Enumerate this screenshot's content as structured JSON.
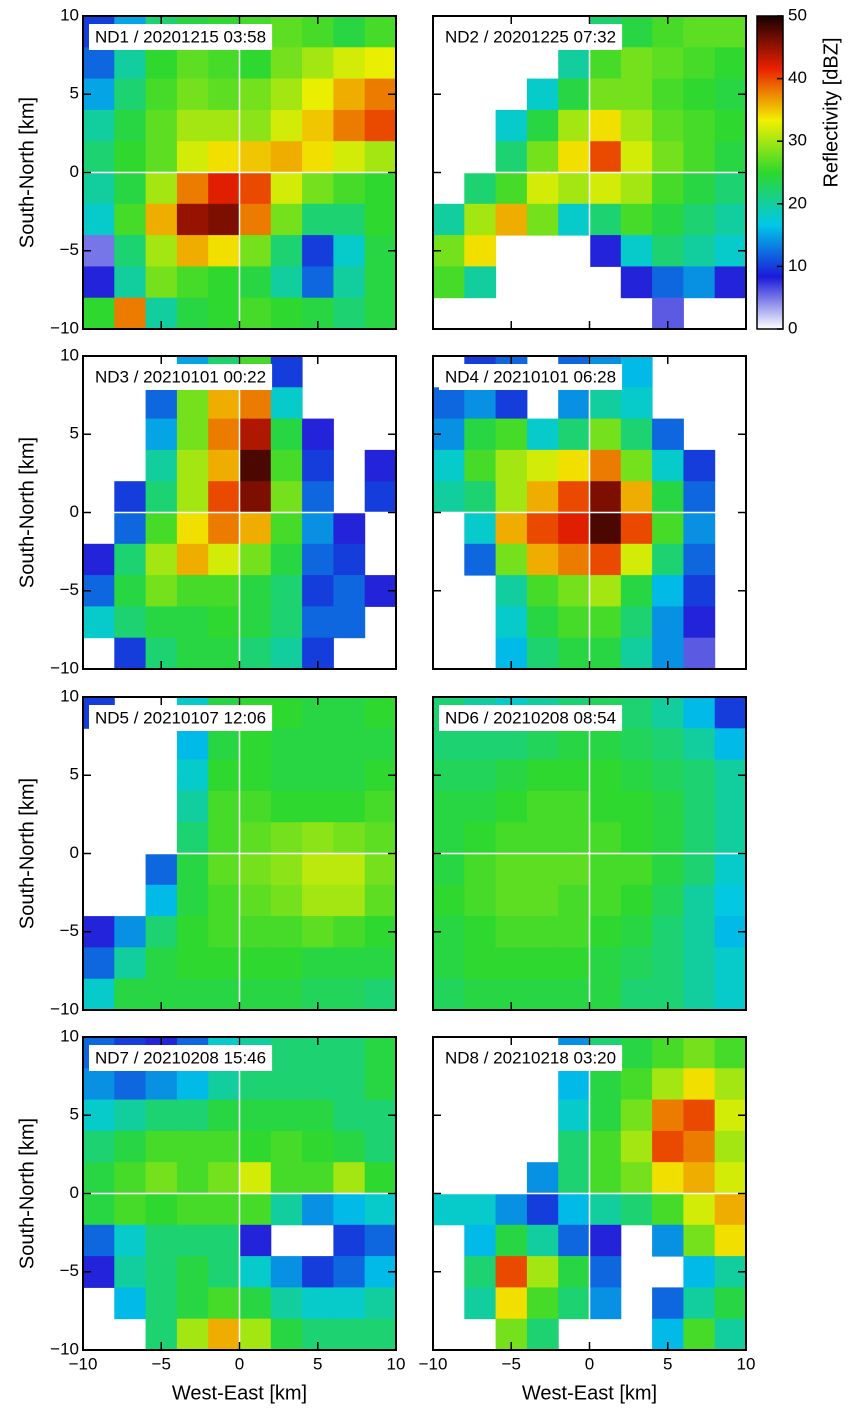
{
  "chart_data": [
    {
      "type": "heatmap",
      "title": "ND1 / 20201215 03:58",
      "ylabel": "South-North [km]",
      "xlim": [
        -10,
        10
      ],
      "ylim": [
        -10,
        10
      ],
      "xticks": [
        -10,
        -5,
        0,
        5,
        10
      ],
      "yticks": [
        {
          "value": -10,
          "label": "−10"
        },
        {
          "value": -5,
          "label": "−5"
        },
        0,
        5,
        10
      ],
      "values": [
        [
          10,
          15,
          22,
          24,
          25,
          26,
          27,
          26,
          24,
          26
        ],
        [
          12,
          20,
          25,
          27,
          26,
          25,
          28,
          30,
          32,
          33
        ],
        [
          15,
          22,
          26,
          28,
          27,
          28,
          30,
          33,
          36,
          38
        ],
        [
          20,
          24,
          27,
          30,
          30,
          29,
          32,
          35,
          38,
          40
        ],
        [
          22,
          25,
          27,
          32,
          34,
          35,
          36,
          34,
          32,
          30
        ],
        [
          20,
          24,
          30,
          38,
          42,
          40,
          32,
          28,
          26,
          25
        ],
        [
          18,
          26,
          36,
          45,
          46,
          38,
          28,
          22,
          22,
          25
        ],
        [
          5,
          22,
          30,
          36,
          34,
          28,
          22,
          10,
          18,
          24
        ],
        [
          8,
          20,
          28,
          26,
          25,
          24,
          20,
          12,
          20,
          24
        ],
        [
          25,
          38,
          20,
          24,
          25,
          26,
          25,
          24,
          22,
          24
        ]
      ]
    },
    {
      "type": "heatmap",
      "title": "ND2 / 20201225 07:32",
      "xlim": [
        -10,
        10
      ],
      "ylim": [
        -10,
        10
      ],
      "xticks": [
        -10,
        -5,
        0,
        5,
        10
      ],
      "yticks": [
        -10,
        -5,
        0,
        5,
        10
      ],
      "values": [
        [
          null,
          null,
          null,
          null,
          null,
          22,
          24,
          26,
          27,
          27
        ],
        [
          null,
          null,
          null,
          null,
          20,
          26,
          28,
          27,
          26,
          25
        ],
        [
          null,
          null,
          null,
          18,
          24,
          28,
          28,
          26,
          25,
          24
        ],
        [
          null,
          null,
          18,
          24,
          30,
          34,
          30,
          27,
          26,
          25
        ],
        [
          null,
          null,
          22,
          28,
          34,
          40,
          32,
          28,
          26,
          24
        ],
        [
          null,
          22,
          26,
          32,
          30,
          32,
          30,
          26,
          24,
          22
        ],
        [
          20,
          30,
          36,
          28,
          18,
          22,
          26,
          24,
          22,
          20
        ],
        [
          28,
          34,
          null,
          null,
          null,
          8,
          18,
          22,
          20,
          18
        ],
        [
          26,
          20,
          null,
          null,
          null,
          null,
          8,
          12,
          14,
          8
        ],
        [
          null,
          null,
          null,
          null,
          null,
          null,
          null,
          6,
          null,
          null
        ]
      ],
      "colorbar_label": "Reflectivity [dBZ]",
      "zlim": [
        0,
        50
      ],
      "zticks": [
        0,
        10,
        20,
        30,
        40,
        50
      ],
      "colormap": [
        "#ffffff",
        "#1a1ad8",
        "#00c8e8",
        "#2ed82e",
        "#f2f000",
        "#e82000",
        "#1a0000"
      ]
    },
    {
      "type": "heatmap",
      "title": "ND3 / 20210101 00:22",
      "ylabel": "South-North [km]",
      "xlim": [
        -10,
        10
      ],
      "ylim": [
        -10,
        10
      ],
      "xticks": [
        -10,
        -5,
        0,
        5,
        10
      ],
      "yticks": [
        {
          "value": -10,
          "label": "−10"
        },
        {
          "value": -5,
          "label": "−5"
        },
        0,
        5,
        10
      ],
      "values": [
        [
          null,
          null,
          null,
          15,
          22,
          26,
          10,
          null,
          null,
          null
        ],
        [
          null,
          null,
          12,
          28,
          36,
          38,
          18,
          null,
          null,
          null
        ],
        [
          null,
          null,
          15,
          28,
          38,
          44,
          24,
          8,
          null,
          null
        ],
        [
          null,
          null,
          20,
          30,
          36,
          48,
          26,
          10,
          null,
          8
        ],
        [
          null,
          10,
          22,
          30,
          40,
          46,
          28,
          12,
          null,
          10
        ],
        [
          null,
          12,
          26,
          34,
          38,
          36,
          26,
          14,
          8,
          null
        ],
        [
          8,
          22,
          30,
          36,
          32,
          28,
          24,
          12,
          10,
          null
        ],
        [
          12,
          24,
          28,
          26,
          26,
          24,
          22,
          10,
          12,
          8
        ],
        [
          18,
          22,
          24,
          24,
          25,
          24,
          22,
          12,
          12,
          null
        ],
        [
          null,
          10,
          22,
          24,
          24,
          22,
          20,
          10,
          null,
          null
        ]
      ]
    },
    {
      "type": "heatmap",
      "title": "ND4 / 20210101 06:28",
      "xlim": [
        -10,
        10
      ],
      "ylim": [
        -10,
        10
      ],
      "xticks": [
        -10,
        -5,
        0,
        5,
        10
      ],
      "yticks": [
        -10,
        -5,
        0,
        5,
        10
      ],
      "values": [
        [
          null,
          10,
          12,
          null,
          12,
          14,
          16,
          null,
          null,
          null
        ],
        [
          12,
          14,
          10,
          null,
          14,
          20,
          18,
          null,
          null,
          null
        ],
        [
          14,
          24,
          26,
          18,
          22,
          28,
          22,
          12,
          null,
          null
        ],
        [
          18,
          26,
          30,
          32,
          34,
          38,
          28,
          18,
          10,
          null
        ],
        [
          20,
          22,
          30,
          36,
          40,
          46,
          36,
          24,
          12,
          null
        ],
        [
          null,
          18,
          36,
          40,
          42,
          48,
          40,
          26,
          14,
          null
        ],
        [
          null,
          12,
          28,
          36,
          38,
          40,
          32,
          22,
          12,
          null
        ],
        [
          null,
          null,
          20,
          26,
          28,
          30,
          24,
          16,
          10,
          null
        ],
        [
          null,
          null,
          18,
          24,
          26,
          26,
          22,
          14,
          8,
          null
        ],
        [
          null,
          null,
          16,
          22,
          24,
          24,
          20,
          14,
          6,
          null
        ]
      ]
    },
    {
      "type": "heatmap",
      "title": "ND5 / 20210107 12:06",
      "ylabel": "South-North [km]",
      "xlim": [
        -10,
        10
      ],
      "ylim": [
        -10,
        10
      ],
      "xticks": [
        -10,
        -5,
        0,
        5,
        10
      ],
      "yticks": [
        {
          "value": -10,
          "label": "−10"
        },
        {
          "value": -5,
          "label": "−5"
        },
        0,
        5,
        10
      ],
      "values": [
        [
          10,
          null,
          null,
          18,
          24,
          25,
          25,
          24,
          24,
          25
        ],
        [
          null,
          null,
          null,
          16,
          24,
          25,
          24,
          24,
          24,
          24
        ],
        [
          null,
          null,
          null,
          18,
          25,
          25,
          24,
          24,
          24,
          25
        ],
        [
          null,
          null,
          null,
          20,
          26,
          26,
          25,
          25,
          25,
          26
        ],
        [
          null,
          null,
          null,
          22,
          26,
          27,
          28,
          29,
          28,
          27
        ],
        [
          null,
          null,
          12,
          24,
          27,
          28,
          29,
          31,
          31,
          28
        ],
        [
          null,
          null,
          16,
          24,
          26,
          27,
          28,
          30,
          30,
          27
        ],
        [
          8,
          14,
          22,
          25,
          26,
          26,
          26,
          27,
          26,
          25
        ],
        [
          12,
          20,
          24,
          25,
          25,
          25,
          25,
          24,
          24,
          24
        ],
        [
          18,
          24,
          24,
          24,
          24,
          24,
          24,
          23,
          23,
          22
        ]
      ]
    },
    {
      "type": "heatmap",
      "title": "ND6 / 20210208 08:54",
      "xlim": [
        -10,
        10
      ],
      "ylim": [
        -10,
        10
      ],
      "xticks": [
        -10,
        -5,
        0,
        5,
        10
      ],
      "yticks": [
        -10,
        -5,
        0,
        5,
        10
      ],
      "values": [
        [
          22,
          20,
          18,
          20,
          22,
          23,
          22,
          20,
          16,
          10
        ],
        [
          22,
          22,
          22,
          23,
          24,
          24,
          23,
          22,
          20,
          16
        ],
        [
          23,
          23,
          24,
          25,
          25,
          25,
          24,
          23,
          22,
          20
        ],
        [
          24,
          24,
          25,
          26,
          26,
          25,
          25,
          24,
          22,
          20
        ],
        [
          24,
          25,
          26,
          26,
          26,
          26,
          25,
          24,
          22,
          20
        ],
        [
          24,
          26,
          27,
          27,
          27,
          26,
          26,
          24,
          22,
          18
        ],
        [
          25,
          26,
          27,
          27,
          26,
          26,
          25,
          23,
          20,
          17
        ],
        [
          24,
          25,
          26,
          26,
          26,
          25,
          24,
          22,
          20,
          16
        ],
        [
          24,
          25,
          25,
          25,
          25,
          24,
          23,
          22,
          20,
          18
        ],
        [
          23,
          24,
          24,
          24,
          24,
          24,
          22,
          22,
          20,
          18
        ]
      ]
    },
    {
      "type": "heatmap",
      "title": "ND7 / 20210208 15:46",
      "ylabel": "South-North [km]",
      "xlabel": "West-East [km]",
      "xlim": [
        -10,
        10
      ],
      "ylim": [
        -10,
        10
      ],
      "xticks": [
        {
          "value": -10,
          "label": "−10"
        },
        {
          "value": -5,
          "label": "−5"
        },
        0,
        5,
        10
      ],
      "yticks": [
        {
          "value": -10,
          "label": "−10"
        },
        {
          "value": -5,
          "label": "−5"
        },
        0,
        5,
        10
      ],
      "values": [
        [
          12,
          10,
          8,
          12,
          18,
          20,
          22,
          22,
          22,
          24
        ],
        [
          14,
          12,
          14,
          16,
          20,
          22,
          22,
          22,
          22,
          24
        ],
        [
          18,
          20,
          22,
          22,
          24,
          24,
          24,
          24,
          22,
          22
        ],
        [
          22,
          24,
          26,
          26,
          26,
          25,
          26,
          25,
          24,
          22
        ],
        [
          24,
          26,
          28,
          26,
          28,
          32,
          26,
          26,
          30,
          25
        ],
        [
          24,
          26,
          25,
          26,
          26,
          26,
          20,
          14,
          16,
          18
        ],
        [
          12,
          18,
          22,
          22,
          22,
          8,
          null,
          null,
          10,
          12
        ],
        [
          8,
          20,
          22,
          24,
          22,
          18,
          14,
          10,
          12,
          16
        ],
        [
          null,
          16,
          22,
          24,
          26,
          24,
          20,
          18,
          18,
          20
        ],
        [
          null,
          null,
          22,
          30,
          36,
          30,
          24,
          22,
          22,
          22
        ]
      ]
    },
    {
      "type": "heatmap",
      "title": "ND8 / 20210218 03:20",
      "xlabel": "West-East [km]",
      "xlim": [
        -10,
        10
      ],
      "ylim": [
        -10,
        10
      ],
      "xticks": [
        {
          "value": -10,
          "label": "−10"
        },
        {
          "value": -5,
          "label": "−5"
        },
        0,
        5,
        10
      ],
      "yticks": [
        -10,
        -5,
        0,
        5,
        10
      ],
      "values": [
        [
          null,
          null,
          null,
          null,
          14,
          22,
          24,
          26,
          28,
          26
        ],
        [
          null,
          null,
          null,
          null,
          16,
          24,
          26,
          30,
          34,
          30
        ],
        [
          null,
          null,
          null,
          null,
          18,
          24,
          28,
          38,
          40,
          32
        ],
        [
          null,
          null,
          null,
          null,
          22,
          26,
          30,
          40,
          38,
          30
        ],
        [
          null,
          null,
          null,
          14,
          22,
          26,
          28,
          34,
          36,
          32
        ],
        [
          18,
          18,
          14,
          10,
          16,
          20,
          22,
          26,
          32,
          36
        ],
        [
          null,
          16,
          24,
          20,
          12,
          8,
          null,
          14,
          28,
          34
        ],
        [
          null,
          22,
          40,
          30,
          24,
          12,
          null,
          null,
          16,
          20
        ],
        [
          null,
          20,
          34,
          26,
          22,
          14,
          null,
          12,
          20,
          24
        ],
        [
          null,
          null,
          28,
          22,
          null,
          null,
          null,
          16,
          26,
          20
        ]
      ]
    }
  ]
}
